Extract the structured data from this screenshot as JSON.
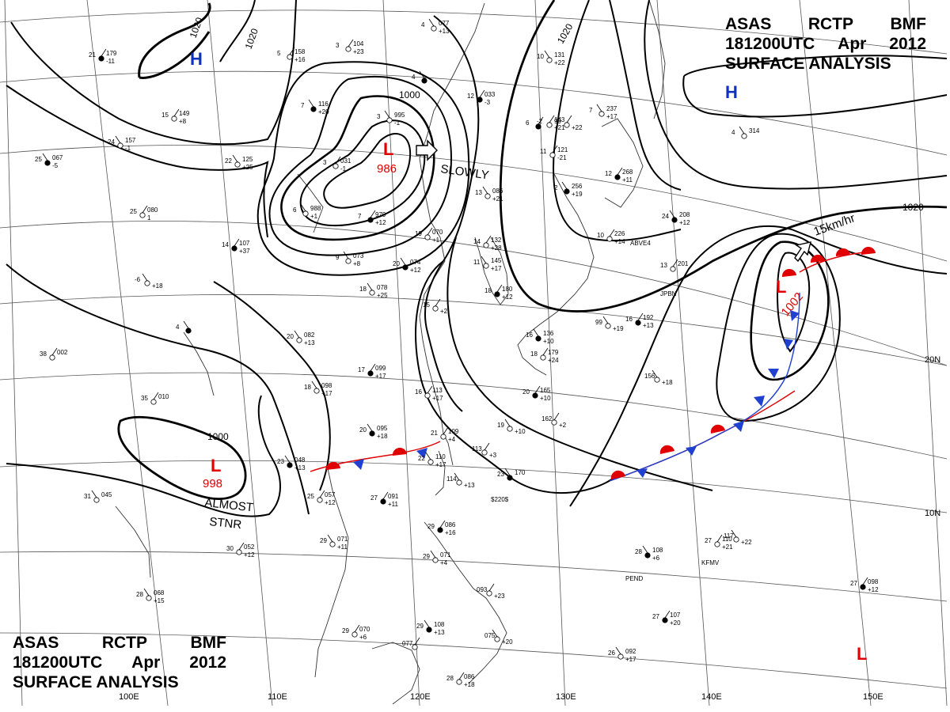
{
  "title": {
    "agency_words": [
      "ASAS",
      "RCTP",
      "BMF"
    ],
    "time_words": [
      "181200UTC",
      "Apr",
      "2012"
    ],
    "product": "SURFACE ANALYSIS"
  },
  "pressure_centers": [
    {
      "kind": "H",
      "color": "#1030c0"
    },
    {
      "kind": "H",
      "color": "#1030c0"
    },
    {
      "kind": "L",
      "color": "#e00000",
      "value": "986"
    },
    {
      "kind": "L",
      "color": "#e00000",
      "value": "998"
    },
    {
      "kind": "L",
      "color": "#e00000",
      "value": "1002"
    },
    {
      "kind": "L",
      "color": "#e00000"
    }
  ],
  "isobar_labels": [
    "1020",
    "1020",
    "1000",
    "1020",
    "1020",
    "1000"
  ],
  "movement_notes": [
    "SLOWLY",
    "15km/hr",
    "ALMOST",
    "STNR"
  ],
  "longitude_labels": [
    "100E",
    "110E",
    "120E",
    "130E",
    "140E",
    "150E"
  ],
  "latitude_labels": [
    "20N",
    "10N"
  ],
  "stations": [
    {
      "a": "21",
      "b": "179",
      "c": "-11"
    },
    {
      "a": "24",
      "b": "157",
      "c": "-1"
    },
    {
      "a": "15",
      "b": "149",
      "c": "+8"
    },
    {
      "a": "25",
      "b": "067",
      "c": "-5"
    },
    {
      "a": "25",
      "b": "080",
      "c": "1"
    },
    {
      "a": "22",
      "b": "125",
      "c": "+25"
    },
    {
      "a": "14",
      "b": "107",
      "c": "+37"
    },
    {
      "a": "-6",
      "b": "",
      "c": "+18"
    },
    {
      "a": "3",
      "b": "104",
      "c": "+23"
    },
    {
      "a": "7",
      "b": "116",
      "c": "+20"
    },
    {
      "a": "5",
      "b": "158",
      "c": "+16"
    },
    {
      "a": "4",
      "b": "077",
      "c": "+13"
    },
    {
      "a": "12",
      "b": "033",
      "c": "-3"
    },
    {
      "a": "10",
      "b": "131",
      "c": "+22"
    },
    {
      "a": "-2",
      "b": "143",
      "c": "+21"
    },
    {
      "a": "4",
      "b": "",
      "c": ""
    },
    {
      "a": "3",
      "b": "031",
      "c": "-1"
    },
    {
      "a": "6",
      "b": "988",
      "c": "+1"
    },
    {
      "a": "7",
      "b": "979",
      "c": "+12"
    },
    {
      "a": "9",
      "b": "073",
      "c": "+8"
    },
    {
      "a": "19",
      "b": "070",
      "c": "+1"
    },
    {
      "a": "20",
      "b": "074",
      "c": "+12"
    },
    {
      "a": "14",
      "b": "132",
      "c": "+28"
    },
    {
      "a": "13",
      "b": "086",
      "c": "+21"
    },
    {
      "a": "6",
      "b": "",
      "c": ""
    },
    {
      "a": "3",
      "b": "995",
      "c": "-1"
    },
    {
      "a": "99",
      "b": "",
      "c": "+22"
    },
    {
      "a": "2",
      "b": "256",
      "c": "+19"
    },
    {
      "a": "11",
      "b": "121",
      "c": "-21"
    },
    {
      "a": "7",
      "b": "237",
      "c": "+17"
    },
    {
      "a": "12",
      "b": "268",
      "c": "+11"
    },
    {
      "a": "4",
      "b": "314",
      "c": ""
    },
    {
      "a": "10",
      "b": "226",
      "c": "+14"
    },
    {
      "a": "24",
      "b": "208",
      "c": "+12"
    },
    {
      "a": "13",
      "b": "201",
      "c": ""
    },
    {
      "a": "11",
      "b": "145",
      "c": "+17"
    },
    {
      "a": "18",
      "b": "180",
      "c": "+12"
    },
    {
      "a": "18",
      "b": "078",
      "c": "+25"
    },
    {
      "a": "15",
      "b": "",
      "c": "+2"
    },
    {
      "a": "4",
      "b": "",
      "c": ""
    },
    {
      "a": "38",
      "b": "002",
      "c": ""
    },
    {
      "a": "20",
      "b": "082",
      "c": "+13"
    },
    {
      "a": "17",
      "b": "099",
      "c": "+17"
    },
    {
      "a": "18",
      "b": "098",
      "c": "+17"
    },
    {
      "a": "16",
      "b": "113",
      "c": "+17"
    },
    {
      "a": "20",
      "b": "095",
      "c": "+18"
    },
    {
      "a": "21",
      "b": "109",
      "c": "+4"
    },
    {
      "a": "22",
      "b": "110",
      "c": "+17"
    },
    {
      "a": "20",
      "b": "165",
      "c": "+10"
    },
    {
      "a": "19",
      "b": "",
      "c": "+10"
    },
    {
      "a": "162",
      "b": "",
      "c": "+2"
    },
    {
      "a": "16",
      "b": "136",
      "c": "+10"
    },
    {
      "a": "18",
      "b": "179",
      "c": "+24"
    },
    {
      "a": "99",
      "b": "",
      "c": "+19"
    },
    {
      "a": "16",
      "b": "192",
      "c": "+13"
    },
    {
      "a": "156",
      "b": "",
      "c": "+18"
    },
    {
      "a": "35",
      "b": "010",
      "c": ""
    },
    {
      "a": "23",
      "b": "048",
      "c": "+13"
    },
    {
      "a": "25",
      "b": "057",
      "c": "+12"
    },
    {
      "a": "31",
      "b": "045",
      "c": ""
    },
    {
      "a": "27",
      "b": "091",
      "c": "+11"
    },
    {
      "a": "114",
      "b": "",
      "c": "+13"
    },
    {
      "a": "113",
      "b": "",
      "c": "+3"
    },
    {
      "a": "23",
      "b": "170",
      "c": ""
    },
    {
      "a": "30",
      "b": "052",
      "c": "+12"
    },
    {
      "a": "29",
      "b": "071",
      "c": "+11"
    },
    {
      "a": "29",
      "b": "086",
      "c": "+16"
    },
    {
      "a": "29",
      "b": "071",
      "c": "+4"
    },
    {
      "a": "093",
      "b": "",
      "c": "+23"
    },
    {
      "a": "28",
      "b": "108",
      "c": "+6"
    },
    {
      "a": "27",
      "b": "110",
      "c": "+21"
    },
    {
      "a": "117",
      "b": "",
      "c": "+22"
    },
    {
      "a": "27",
      "b": "098",
      "c": "+12"
    },
    {
      "a": "28",
      "b": "068",
      "c": "+15"
    },
    {
      "a": "29",
      "b": "070",
      "c": "+6"
    },
    {
      "a": "29",
      "b": "108",
      "c": "+13"
    },
    {
      "a": "077",
      "b": "",
      "c": ""
    },
    {
      "a": "075",
      "b": "",
      "c": "+20"
    },
    {
      "a": "27",
      "b": "107",
      "c": "+20"
    },
    {
      "a": "26",
      "b": "092",
      "c": "+17"
    },
    {
      "a": "28",
      "b": "086",
      "c": "+18"
    }
  ],
  "station_ids": [
    "ABVE4",
    "JPBN",
    "PEND",
    "KFMV",
    "$220$"
  ]
}
